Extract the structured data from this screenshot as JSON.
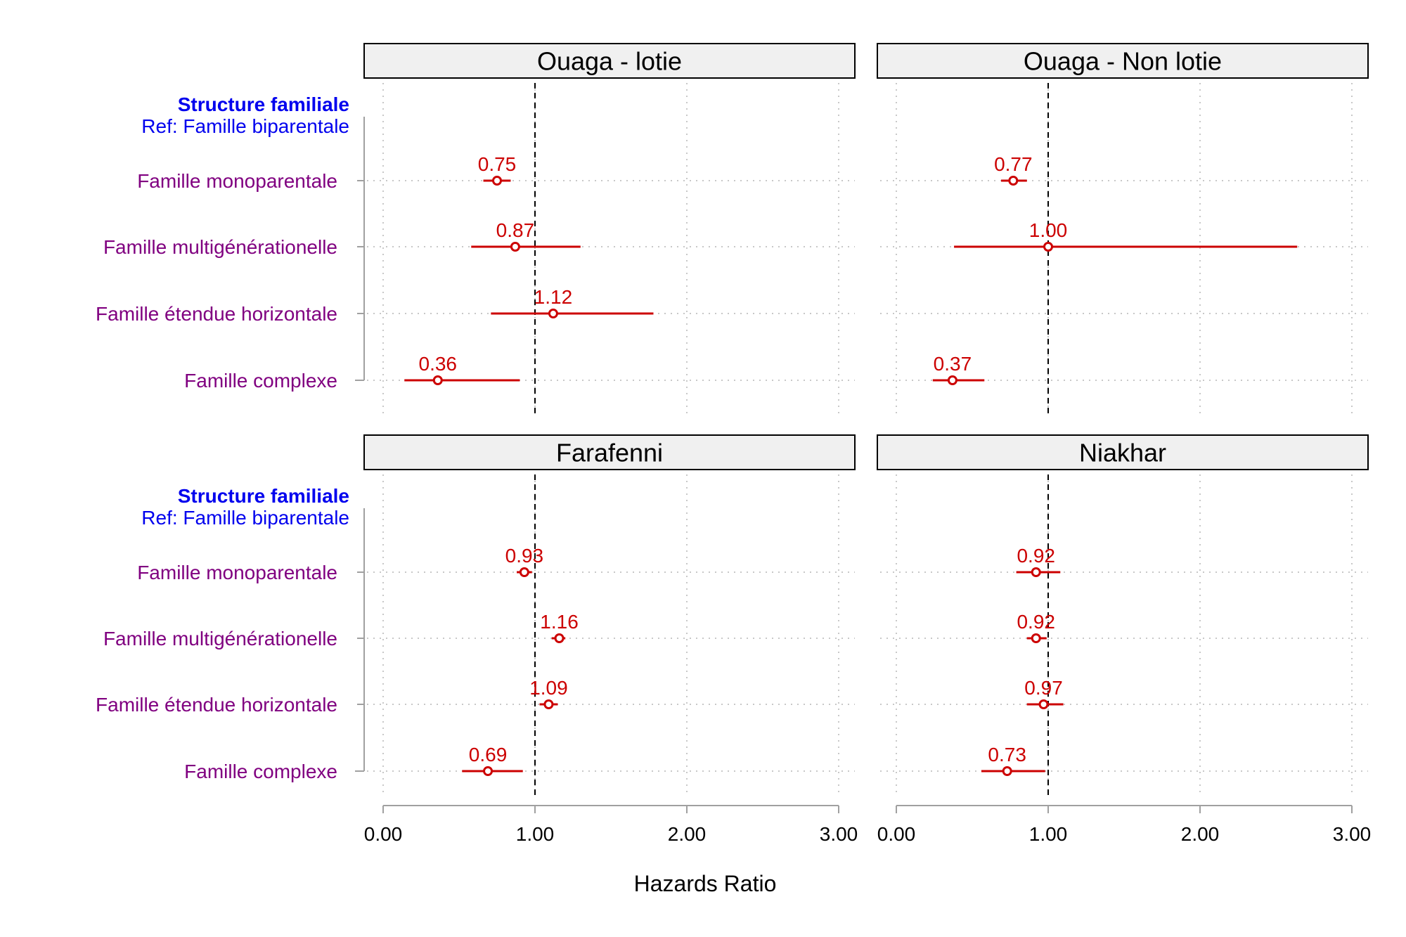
{
  "chart_data": {
    "type": "forest",
    "x_label": "Hazards Ratio",
    "x_ticks": [
      0,
      1,
      2,
      3
    ],
    "x_tick_labels": [
      "0.00",
      "1.00",
      "2.00",
      "3.00"
    ],
    "xlim": [
      0,
      3
    ],
    "reference_line": 1,
    "group": {
      "title": "Structure familiale",
      "reference": "Ref: Famille biparentale"
    },
    "rows": [
      "Famille monoparentale",
      "Famille multigénérationelle",
      "Famille étendue horizontale",
      "Famille complexe"
    ],
    "panels": [
      {
        "name": "Ouaga - lotie",
        "estimates": [
          {
            "hr": 0.75,
            "label": "0.75",
            "lo": 0.66,
            "hi": 0.84
          },
          {
            "hr": 0.87,
            "label": "0.87",
            "lo": 0.58,
            "hi": 1.3
          },
          {
            "hr": 1.12,
            "label": "1.12",
            "lo": 0.71,
            "hi": 1.78
          },
          {
            "hr": 0.36,
            "label": "0.36",
            "lo": 0.14,
            "hi": 0.9
          }
        ]
      },
      {
        "name": "Ouaga - Non lotie",
        "estimates": [
          {
            "hr": 0.77,
            "label": "0.77",
            "lo": 0.69,
            "hi": 0.86
          },
          {
            "hr": 1.0,
            "label": "1.00",
            "lo": 0.38,
            "hi": 2.64
          },
          null,
          {
            "hr": 0.37,
            "label": "0.37",
            "lo": 0.24,
            "hi": 0.58
          }
        ]
      },
      {
        "name": "Farafenni",
        "estimates": [
          {
            "hr": 0.93,
            "label": "0.93",
            "lo": 0.88,
            "hi": 0.98
          },
          {
            "hr": 1.16,
            "label": "1.16",
            "lo": 1.11,
            "hi": 1.2
          },
          {
            "hr": 1.09,
            "label": "1.09",
            "lo": 1.03,
            "hi": 1.15
          },
          {
            "hr": 0.69,
            "label": "0.69",
            "lo": 0.52,
            "hi": 0.92
          }
        ]
      },
      {
        "name": "Niakhar",
        "estimates": [
          {
            "hr": 0.92,
            "label": "0.92",
            "lo": 0.79,
            "hi": 1.08
          },
          {
            "hr": 0.92,
            "label": "0.92",
            "lo": 0.86,
            "hi": 0.99
          },
          {
            "hr": 0.97,
            "label": "0.97",
            "lo": 0.86,
            "hi": 1.1
          },
          {
            "hr": 0.73,
            "label": "0.73",
            "lo": 0.56,
            "hi": 0.98
          }
        ]
      }
    ]
  },
  "colors": {
    "estimate": "#cc0000",
    "row_label": "#800080",
    "group_header": "#0000ee",
    "strip_fill": "#f0f0f0",
    "strip_border": "#000000",
    "grid": "#c8c8c8",
    "axis": "#a0a0a0",
    "reference_line": "#000000"
  }
}
